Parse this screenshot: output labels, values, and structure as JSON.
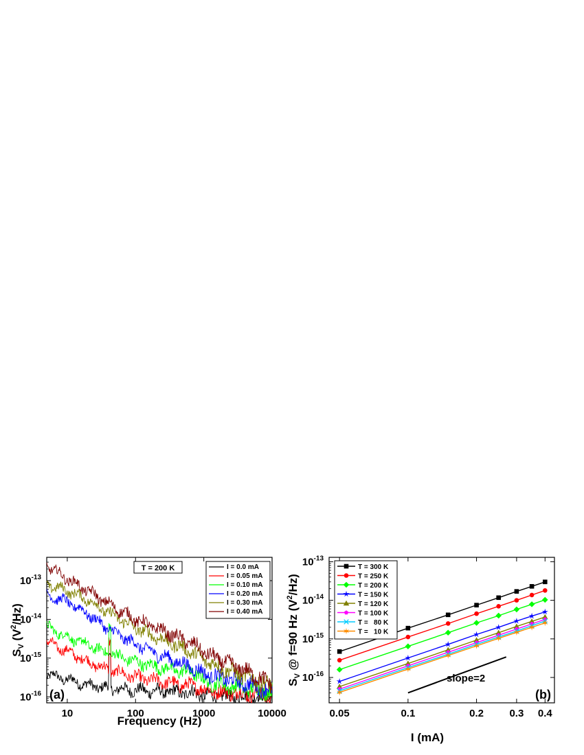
{
  "chart_data": [
    {
      "type": "line",
      "panel_label": "(a)",
      "annotation": "T = 200 K",
      "xlabel": "Frequency (Hz)",
      "ylabel_main": "S",
      "ylabel_sub": "V",
      "ylabel_open": " (V",
      "ylabel_sup": "2",
      "ylabel_close": "/Hz)",
      "x_scale": "log",
      "y_scale": "log",
      "xlim": [
        5,
        10000
      ],
      "ylim": [
        7e-17,
        4e-13
      ],
      "x_ticks": [
        {
          "value": 10,
          "label": "10"
        },
        {
          "value": 100,
          "label": "100"
        },
        {
          "value": 1000,
          "label": "1000"
        },
        {
          "value": 10000,
          "label": "10000"
        }
      ],
      "y_ticks": [
        {
          "value": 1e-16,
          "base": "10",
          "exp": "-16"
        },
        {
          "value": 1e-15,
          "base": "10",
          "exp": "-15"
        },
        {
          "value": 1e-14,
          "base": "10",
          "exp": "-14"
        },
        {
          "value": 1e-13,
          "base": "10",
          "exp": "-13"
        }
      ],
      "legend_position": "top-right",
      "series": [
        {
          "name": "I = 0.0 mA",
          "color": "#000000",
          "x": [
            5,
            10,
            20,
            30,
            50,
            100,
            200,
            500,
            800,
            1000,
            2000,
            5000,
            10000
          ],
          "y": [
            3.8e-16,
            2.8e-16,
            2e-16,
            1.8e-16,
            1.6e-16,
            1.5e-16,
            1.4e-16,
            1.3e-16,
            1.25e-16,
            1.1e-16,
            1.05e-16,
            1e-16,
            1e-16
          ]
        },
        {
          "name": "I = 0.05 mA",
          "color": "#ff0000",
          "x": [
            5,
            10,
            20,
            30,
            50,
            100,
            200,
            500,
            800,
            1000,
            2000,
            5000,
            10000
          ],
          "y": [
            2.6e-15,
            1.5e-15,
            8e-16,
            6e-16,
            4.5e-16,
            3.2e-16,
            2.6e-16,
            2e-16,
            1.9e-16,
            1.5e-16,
            1.3e-16,
            1.2e-16,
            1.1e-16
          ]
        },
        {
          "name": "I = 0.10 mA",
          "color": "#00ff00",
          "x": [
            5,
            10,
            20,
            30,
            50,
            100,
            200,
            500,
            800,
            1000,
            2000,
            5000,
            10000
          ],
          "y": [
            6.5e-15,
            3.5e-15,
            2.2e-15,
            1.6e-15,
            1.2e-15,
            8e-16,
            6e-16,
            4.5e-16,
            4e-16,
            2.5e-16,
            2e-16,
            1.6e-16,
            1.3e-16
          ]
        },
        {
          "name": "I = 0.20 mA",
          "color": "#0000ff",
          "x": [
            5,
            10,
            20,
            30,
            50,
            100,
            200,
            500,
            800,
            1000,
            2000,
            5000,
            10000
          ],
          "y": [
            4.2e-14,
            2.8e-14,
            1.4e-14,
            8e-15,
            4.5e-15,
            2.3e-15,
            1.3e-15,
            7e-16,
            5e-16,
            4e-16,
            3e-16,
            2e-16,
            1.4e-16
          ]
        },
        {
          "name": "I = 0.30 mA",
          "color": "#808000",
          "x": [
            5,
            10,
            20,
            30,
            50,
            100,
            200,
            500,
            800,
            1000,
            2000,
            5000,
            10000
          ],
          "y": [
            8e-14,
            5.5e-14,
            3.2e-14,
            2e-14,
            1.2e-14,
            6e-15,
            3.5e-15,
            1.8e-15,
            1.2e-15,
            9e-16,
            5e-16,
            3e-16,
            1.8e-16
          ]
        },
        {
          "name": "I = 0.40 mA",
          "color": "#800000",
          "x": [
            5,
            10,
            20,
            30,
            50,
            100,
            200,
            500,
            800,
            1000,
            2000,
            5000,
            10000
          ],
          "y": [
            2.5e-13,
            1.1e-13,
            5.5e-14,
            3.5e-14,
            2e-14,
            1e-14,
            6e-15,
            3e-15,
            2e-15,
            1.4e-15,
            8e-16,
            4e-16,
            2e-16
          ]
        }
      ]
    },
    {
      "type": "line",
      "panel_label": "(b)",
      "annotation": "slope=2",
      "xlabel": "I (mA)",
      "ylabel_main": "S",
      "ylabel_sub": "V",
      "ylabel_rest": " @ f=90 Hz  (V",
      "ylabel_sup": "2",
      "ylabel_close": "/Hz)",
      "x_scale": "log",
      "y_scale": "log",
      "xlim": [
        0.045,
        0.44
      ],
      "ylim": [
        2.2e-17,
        1.3e-13
      ],
      "x_ticks": [
        {
          "value": 0.05,
          "label": "0.05"
        },
        {
          "value": 0.1,
          "label": "0.1"
        },
        {
          "value": 0.2,
          "label": "0.2"
        },
        {
          "value": 0.3,
          "label": "0.3"
        },
        {
          "value": 0.4,
          "label": "0.4"
        }
      ],
      "y_ticks": [
        {
          "value": 1e-16,
          "base": "10",
          "exp": "-16"
        },
        {
          "value": 1e-15,
          "base": "10",
          "exp": "-15"
        },
        {
          "value": 1e-14,
          "base": "10",
          "exp": "-14"
        },
        {
          "value": 1e-13,
          "base": "10",
          "exp": "-13"
        }
      ],
      "slope_line": {
        "x": [
          0.1,
          0.27
        ],
        "y": [
          4e-17,
          3.4e-16
        ]
      },
      "legend_position": "top-left",
      "x": [
        0.05,
        0.1,
        0.15,
        0.2,
        0.25,
        0.3,
        0.35,
        0.4
      ],
      "series": [
        {
          "name": "T = 300 K",
          "color": "#000000",
          "marker": "square",
          "y": [
            4.7e-16,
            1.9e-15,
            4.2e-15,
            7.5e-15,
            1.17e-14,
            1.7e-14,
            2.3e-14,
            3e-14
          ]
        },
        {
          "name": "T = 250 K",
          "color": "#ff0000",
          "marker": "circle",
          "y": [
            2.8e-16,
            1.12e-15,
            2.5e-15,
            4.5e-15,
            7e-15,
            1e-14,
            1.37e-14,
            1.8e-14
          ]
        },
        {
          "name": "T = 200 K",
          "color": "#00ff00",
          "marker": "diamond",
          "y": [
            1.6e-16,
            6.4e-16,
            1.45e-15,
            2.6e-15,
            4e-15,
            5.8e-15,
            7.9e-15,
            1.03e-14
          ]
        },
        {
          "name": "T = 150 K",
          "color": "#0000ff",
          "marker": "star",
          "y": [
            7.9e-17,
            3.2e-16,
            7.2e-16,
            1.3e-15,
            2e-15,
            2.9e-15,
            3.9e-15,
            5e-15
          ]
        },
        {
          "name": "T = 120 K",
          "color": "#808000",
          "marker": "triangle",
          "y": [
            5.8e-17,
            2.3e-16,
            5.2e-16,
            9.3e-16,
            1.45e-15,
            2.1e-15,
            2.85e-15,
            3.7e-15
          ]
        },
        {
          "name": "T = 100 K",
          "color": "#ff00ff",
          "marker": "pentagon",
          "y": [
            5e-17,
            2e-16,
            4.5e-16,
            8e-16,
            1.25e-15,
            1.8e-15,
            2.45e-15,
            3.2e-15
          ]
        },
        {
          "name": "T =   80 K",
          "color": "#00ccff",
          "marker": "x",
          "y": [
            4.5e-17,
            1.8e-16,
            4e-16,
            7.2e-16,
            1.12e-15,
            1.6e-15,
            2.2e-15,
            2.9e-15
          ]
        },
        {
          "name": "T =   10 K",
          "color": "#ff8c00",
          "marker": "star6",
          "y": [
            4.1e-17,
            1.65e-16,
            3.7e-16,
            6.6e-16,
            1.03e-15,
            1.48e-15,
            2e-15,
            2.6e-15
          ]
        }
      ]
    }
  ]
}
